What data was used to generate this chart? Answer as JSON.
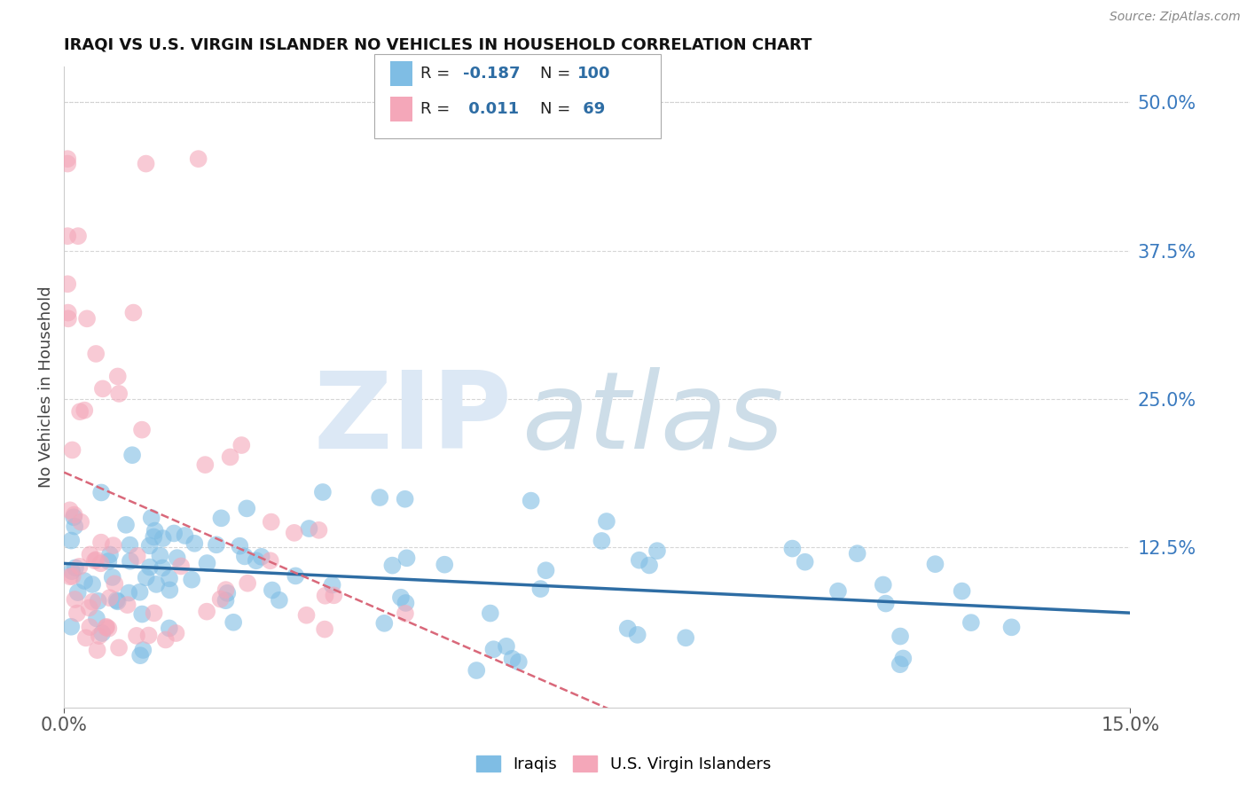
{
  "title": "IRAQI VS U.S. VIRGIN ISLANDER NO VEHICLES IN HOUSEHOLD CORRELATION CHART",
  "source": "Source: ZipAtlas.com",
  "ylabel": "No Vehicles in Household",
  "xlim": [
    0.0,
    15.0
  ],
  "ylim": [
    -1.0,
    53.0
  ],
  "x_ticks": [
    0.0,
    15.0
  ],
  "x_tick_labels": [
    "0.0%",
    "15.0%"
  ],
  "y_ticks_right": [
    0.0,
    12.5,
    25.0,
    37.5,
    50.0
  ],
  "y_tick_labels_right": [
    "",
    "12.5%",
    "25.0%",
    "37.5%",
    "50.0%"
  ],
  "legend_labels": [
    "Iraqis",
    "U.S. Virgin Islanders"
  ],
  "legend_R": [
    -0.187,
    0.011
  ],
  "legend_N": [
    100,
    69
  ],
  "blue_color": "#7fbde4",
  "pink_color": "#f4a7b9",
  "blue_line_color": "#2e6da4",
  "pink_line_color": "#d9687a",
  "background_color": "#ffffff",
  "grid_color": "#cccccc"
}
